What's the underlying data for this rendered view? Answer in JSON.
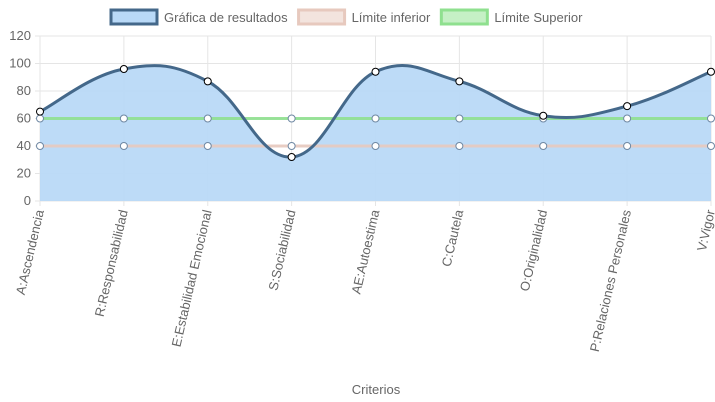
{
  "chart_data": {
    "type": "line",
    "xlabel": "Criterios",
    "ylabel": "",
    "ylim": [
      0,
      120
    ],
    "yticks": [
      "0",
      "20",
      "40",
      "60",
      "80",
      "100",
      "120"
    ],
    "grid": true,
    "legend_position": "top",
    "categories": [
      "A:Ascendencia",
      "R:Responsabilidad",
      "E:Estabilidad Emocional",
      "S:Sociabilidad",
      "AE:Autoestima",
      "C:Cautela",
      "O:Originalidad",
      "P:Relaciones Personales",
      "V:Vigor"
    ],
    "series": [
      {
        "name": "Gráfica de resultados",
        "values": [
          65,
          96,
          87,
          32,
          94,
          87,
          62,
          69,
          94
        ],
        "stroke": "#44688a",
        "fill": "#b9d9f7",
        "area": true
      },
      {
        "name": "Límite inferior",
        "values": [
          40,
          40,
          40,
          40,
          40,
          40,
          40,
          40,
          40
        ],
        "stroke": "#e7c9be",
        "fill": "#f3e4de",
        "area": false
      },
      {
        "name": "Límite Superior",
        "values": [
          60,
          60,
          60,
          60,
          60,
          60,
          60,
          60,
          60
        ],
        "stroke": "#8fe08f",
        "fill": "#c5f0c5",
        "area": false
      }
    ]
  }
}
